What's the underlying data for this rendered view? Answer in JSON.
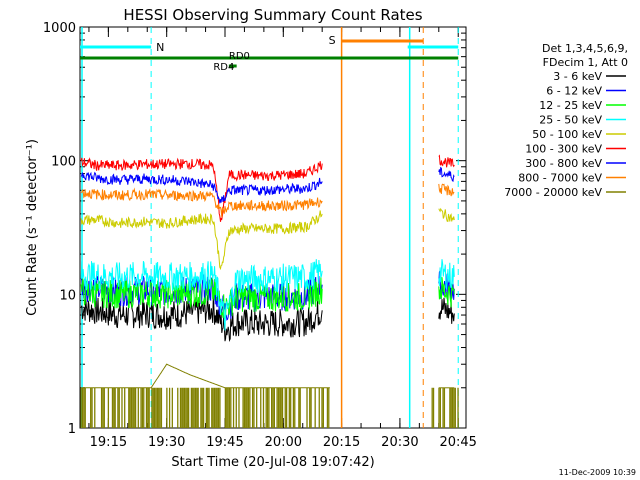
{
  "chart_data": {
    "type": "line",
    "title": "HESSI Observing Summary Count Rates",
    "xlabel": "Start Time (20-Jul-08 19:07:42)",
    "ylabel": "Count Rate (s⁻¹ detector⁻¹)",
    "y_scale": "log",
    "ylim": [
      1,
      1000
    ],
    "xlim": [
      "19:07:42",
      "20:47:00"
    ],
    "x_ticks": [
      "19:15",
      "19:30",
      "19:45",
      "20:00",
      "20:15",
      "20:30",
      "20:45"
    ],
    "y_ticks": [
      "1",
      "10",
      "100",
      "1000"
    ],
    "legend": {
      "position": "right",
      "header": [
        "Det 1,3,4,5,6,9,",
        "FDecim 1, Att 0"
      ]
    },
    "series": [
      {
        "name": "3 - 6 keV",
        "color": "#000000",
        "x": [
          "19:08",
          "19:12",
          "19:18",
          "19:24",
          "19:30",
          "19:36",
          "19:42",
          "19:45",
          "19:48",
          "19:54",
          "20:00",
          "20:06",
          "20:10",
          "20:38",
          "20:40",
          "20:44"
        ],
        "y": [
          8.0,
          7.5,
          7.0,
          7.2,
          7.0,
          7.3,
          7.8,
          5.5,
          6.2,
          6.0,
          6.1,
          6.2,
          7.6,
          null,
          8.0,
          7.2
        ]
      },
      {
        "name": "6 - 12 keV",
        "color": "#0000ff",
        "x": [
          "19:08",
          "19:12",
          "19:18",
          "19:24",
          "19:30",
          "19:36",
          "19:42",
          "19:45",
          "19:48",
          "19:54",
          "20:00",
          "20:06",
          "20:10",
          "20:38",
          "20:40",
          "20:44"
        ],
        "y": [
          11.5,
          11.0,
          10.5,
          10.8,
          10.5,
          10.8,
          11.0,
          7.5,
          9.5,
          9.5,
          9.6,
          9.8,
          11.8,
          null,
          12.0,
          11.0
        ]
      },
      {
        "name": "12 - 25 keV",
        "color": "#00ff00",
        "x": [
          "19:08",
          "19:12",
          "19:18",
          "19:24",
          "19:30",
          "19:36",
          "19:42",
          "19:45",
          "19:48",
          "19:54",
          "20:00",
          "20:06",
          "20:10",
          "20:38",
          "20:40",
          "20:44"
        ],
        "y": [
          10.5,
          10.2,
          10.0,
          10.3,
          10.0,
          10.2,
          10.5,
          8.0,
          9.5,
          9.4,
          9.5,
          9.6,
          11.0,
          null,
          11.0,
          10.0
        ]
      },
      {
        "name": "25 - 50 keV",
        "color": "#00ffff",
        "x": [
          "19:08",
          "19:12",
          "19:18",
          "19:24",
          "19:30",
          "19:36",
          "19:42",
          "19:45",
          "19:48",
          "19:54",
          "20:00",
          "20:06",
          "20:10",
          "20:38",
          "20:40",
          "20:44"
        ],
        "y": [
          14.0,
          13.8,
          13.5,
          13.8,
          13.5,
          13.6,
          14.0,
          6.5,
          13.0,
          13.0,
          13.2,
          13.3,
          15.0,
          null,
          14.5,
          13.5
        ]
      },
      {
        "name": "50 - 100 keV",
        "color": "#cccc00",
        "x": [
          "19:08",
          "19:12",
          "19:18",
          "19:24",
          "19:30",
          "19:36",
          "19:42",
          "19:44",
          "19:46",
          "19:50",
          "19:54",
          "20:00",
          "20:06",
          "20:10",
          "20:38",
          "20:40",
          "20:44"
        ],
        "y": [
          36,
          36,
          34,
          35,
          34,
          36,
          37,
          15,
          30,
          31,
          31,
          31,
          32,
          40,
          null,
          42,
          36
        ]
      },
      {
        "name": "100 - 300 keV",
        "color": "#ff0000",
        "x": [
          "19:08",
          "19:12",
          "19:18",
          "19:24",
          "19:30",
          "19:36",
          "19:42",
          "19:44",
          "19:46",
          "19:50",
          "19:54",
          "20:00",
          "20:06",
          "20:10",
          "20:38",
          "20:40",
          "20:44"
        ],
        "y": [
          98,
          92,
          92,
          94,
          94,
          95,
          92,
          34,
          78,
          78,
          77,
          78,
          80,
          95,
          null,
          102,
          93
        ]
      },
      {
        "name": "300 - 800 keV",
        "color": "#0000ff",
        "x": [
          "19:08",
          "19:12",
          "19:18",
          "19:24",
          "19:30",
          "19:36",
          "19:42",
          "19:44",
          "19:46",
          "19:50",
          "19:54",
          "20:00",
          "20:06",
          "20:10",
          "20:38",
          "20:40",
          "20:44"
        ],
        "y": [
          80,
          74,
          72,
          73,
          72,
          70,
          65,
          48,
          60,
          60,
          60,
          61,
          62,
          70,
          null,
          82,
          76
        ]
      },
      {
        "name": "800 - 7000 keV",
        "color": "#ff8000",
        "x": [
          "19:08",
          "19:12",
          "19:18",
          "19:24",
          "19:30",
          "19:36",
          "19:42",
          "19:44",
          "19:46",
          "19:50",
          "19:54",
          "20:00",
          "20:06",
          "20:10",
          "20:38",
          "20:40",
          "20:44"
        ],
        "y": [
          58,
          56,
          55,
          56,
          55,
          55,
          54,
          40,
          46,
          46,
          46,
          46,
          47,
          50,
          null,
          62,
          58
        ]
      },
      {
        "name": "7000 - 20000 keV",
        "color": "#808000",
        "x": [
          "19:08",
          "19:18",
          "19:26",
          "19:30",
          "19:36",
          "19:45",
          "19:50",
          "20:00",
          "20:06",
          "20:10",
          "20:12",
          "20:38",
          "20:40",
          "20:44"
        ],
        "y": [
          2,
          2,
          2,
          3,
          2.5,
          2,
          2,
          2,
          2,
          2,
          2,
          null,
          2,
          2
        ]
      }
    ],
    "annotations": {
      "night_markers": [
        {
          "label": "N",
          "time_start": "19:07:42",
          "time_end": "19:26",
          "color": "#00ffff"
        },
        {
          "label": "",
          "time_start": "20:32",
          "time_end": "20:45",
          "color": "#00ffff"
        }
      ],
      "saa_markers": [
        {
          "label": "S",
          "time_start": "20:15",
          "time_end": "20:36",
          "color": "#ff8000"
        }
      ],
      "decimation_markers": [
        {
          "label": "RD0",
          "time_start": "19:07:42",
          "time_end": "20:45",
          "color": "#008000"
        },
        {
          "label": "RD4",
          "time_start": "19:46",
          "time_end": "19:48",
          "color": "#008000"
        }
      ]
    }
  },
  "timestamp": "11-Dec-2009 10:39"
}
